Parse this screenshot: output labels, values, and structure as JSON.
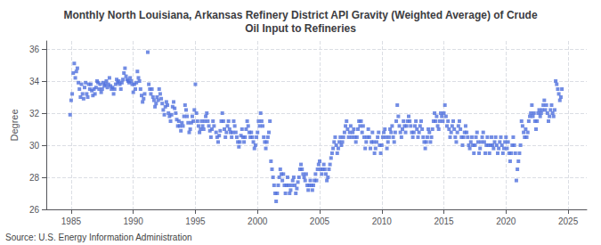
{
  "chart_data": {
    "type": "scatter",
    "title": "Monthly North Louisiana, Arkansas Refinery District API Gravity (Weighted Average) of Crude\nOil Input to Refineries",
    "ylabel": "Degree",
    "source": "Source: U.S. Energy Information Administration",
    "marker": "square",
    "grid": true,
    "xlim": [
      1983.0,
      2026.5
    ],
    "ylim": [
      26,
      36.5
    ],
    "xticks": [
      1985,
      1990,
      1995,
      2000,
      2005,
      2010,
      2015,
      2020,
      2025
    ],
    "yticks": [
      26,
      28,
      30,
      32,
      34,
      36
    ],
    "x": [
      1984.917,
      1985.0,
      1985.083,
      1985.167,
      1985.25,
      1985.333,
      1985.417,
      1985.5,
      1985.583,
      1985.667,
      1985.75,
      1985.833,
      1985.917,
      1986.0,
      1986.083,
      1986.167,
      1986.25,
      1986.333,
      1986.417,
      1986.5,
      1986.583,
      1986.667,
      1986.75,
      1986.833,
      1986.917,
      1987.0,
      1987.083,
      1987.167,
      1987.25,
      1987.333,
      1987.417,
      1987.5,
      1987.583,
      1987.667,
      1987.75,
      1987.833,
      1987.917,
      1988.0,
      1988.083,
      1988.167,
      1988.25,
      1988.333,
      1988.417,
      1988.5,
      1988.583,
      1988.667,
      1988.75,
      1988.833,
      1988.917,
      1989.0,
      1989.083,
      1989.167,
      1989.25,
      1989.333,
      1989.417,
      1989.5,
      1989.583,
      1989.667,
      1989.75,
      1989.833,
      1989.917,
      1990.0,
      1990.083,
      1990.167,
      1990.25,
      1990.333,
      1990.417,
      1990.5,
      1990.583,
      1990.667,
      1990.75,
      1990.833,
      1990.917,
      1991.167,
      1991.25,
      1991.333,
      1991.417,
      1991.5,
      1991.583,
      1991.667,
      1991.75,
      1991.833,
      1991.917,
      1992.0,
      1992.083,
      1992.167,
      1992.25,
      1992.333,
      1992.417,
      1992.5,
      1992.583,
      1992.667,
      1992.75,
      1992.833,
      1992.917,
      1993.0,
      1993.083,
      1993.167,
      1993.25,
      1993.333,
      1993.417,
      1993.5,
      1993.583,
      1993.667,
      1993.75,
      1993.833,
      1993.917,
      1994.0,
      1994.083,
      1994.167,
      1994.25,
      1994.333,
      1994.417,
      1994.5,
      1994.583,
      1994.667,
      1994.75,
      1994.833,
      1994.917,
      1995.0,
      1995.083,
      1995.167,
      1995.25,
      1995.333,
      1995.417,
      1995.5,
      1995.583,
      1995.667,
      1995.75,
      1995.833,
      1995.917,
      1996.0,
      1996.083,
      1996.167,
      1996.25,
      1996.333,
      1996.417,
      1996.5,
      1996.667,
      1996.75,
      1996.833,
      1996.917,
      1997.0,
      1997.083,
      1997.167,
      1997.25,
      1997.333,
      1997.417,
      1997.5,
      1997.583,
      1997.667,
      1997.75,
      1997.833,
      1997.917,
      1998.0,
      1998.083,
      1998.167,
      1998.25,
      1998.333,
      1998.417,
      1998.5,
      1998.583,
      1998.667,
      1998.75,
      1998.833,
      1998.917,
      1999.0,
      1999.083,
      1999.167,
      1999.25,
      1999.333,
      1999.417,
      1999.5,
      1999.583,
      1999.667,
      1999.75,
      1999.833,
      1999.917,
      2000.0,
      2000.083,
      2000.167,
      2000.25,
      2000.333,
      2000.417,
      2000.5,
      2000.583,
      2000.667,
      2000.75,
      2000.833,
      2000.917,
      2001.0,
      2001.083,
      2001.167,
      2001.25,
      2001.333,
      2001.417,
      2001.5,
      2001.583,
      2001.667,
      2001.75,
      2001.833,
      2001.917,
      2002.0,
      2002.083,
      2002.167,
      2002.25,
      2002.333,
      2002.417,
      2002.5,
      2002.583,
      2002.667,
      2002.75,
      2002.833,
      2002.917,
      2003.0,
      2003.083,
      2003.167,
      2003.25,
      2003.333,
      2003.417,
      2003.5,
      2003.583,
      2003.667,
      2003.75,
      2003.833,
      2003.917,
      2004.0,
      2004.083,
      2004.167,
      2004.25,
      2004.333,
      2004.417,
      2004.5,
      2004.583,
      2004.667,
      2004.75,
      2004.833,
      2004.917,
      2005.0,
      2005.083,
      2005.167,
      2005.25,
      2005.333,
      2005.417,
      2005.5,
      2005.583,
      2005.667,
      2005.75,
      2005.833,
      2005.917,
      2006.0,
      2006.083,
      2006.167,
      2006.25,
      2006.333,
      2006.417,
      2006.5,
      2006.583,
      2006.667,
      2006.75,
      2006.833,
      2006.917,
      2007.0,
      2007.083,
      2007.167,
      2007.25,
      2007.333,
      2007.417,
      2007.5,
      2007.583,
      2007.667,
      2007.75,
      2007.833,
      2007.917,
      2008.0,
      2008.083,
      2008.167,
      2008.25,
      2008.333,
      2008.417,
      2008.5,
      2008.583,
      2008.667,
      2008.75,
      2008.833,
      2008.917,
      2009.0,
      2009.083,
      2009.167,
      2009.25,
      2009.333,
      2009.417,
      2009.5,
      2009.583,
      2009.667,
      2009.75,
      2009.833,
      2009.917,
      2010.0,
      2010.083,
      2010.167,
      2010.25,
      2010.333,
      2010.417,
      2010.5,
      2010.583,
      2010.667,
      2010.75,
      2010.833,
      2010.917,
      2011.0,
      2011.083,
      2011.167,
      2011.25,
      2011.333,
      2011.417,
      2011.5,
      2011.583,
      2011.667,
      2011.75,
      2011.833,
      2011.917,
      2012.0,
      2012.083,
      2012.167,
      2012.25,
      2012.333,
      2012.417,
      2012.5,
      2012.583,
      2012.667,
      2012.75,
      2012.833,
      2012.917,
      2013.0,
      2013.083,
      2013.167,
      2013.25,
      2013.333,
      2013.417,
      2013.5,
      2013.583,
      2013.667,
      2013.75,
      2013.833,
      2013.917,
      2014.0,
      2014.083,
      2014.167,
      2014.25,
      2014.333,
      2014.417,
      2014.5,
      2014.583,
      2014.667,
      2014.75,
      2014.833,
      2014.917,
      2015.0,
      2015.083,
      2015.167,
      2015.25,
      2015.333,
      2015.417,
      2015.5,
      2015.583,
      2015.667,
      2015.75,
      2015.833,
      2015.917,
      2016.0,
      2016.083,
      2016.167,
      2016.25,
      2016.333,
      2016.417,
      2016.5,
      2016.583,
      2016.667,
      2016.75,
      2016.833,
      2016.917,
      2017.0,
      2017.083,
      2017.167,
      2017.25,
      2017.333,
      2017.417,
      2017.5,
      2017.583,
      2017.667,
      2017.75,
      2017.833,
      2017.917,
      2018.0,
      2018.083,
      2018.167,
      2018.25,
      2018.333,
      2018.417,
      2018.5,
      2018.583,
      2018.667,
      2018.75,
      2018.833,
      2018.917,
      2019.0,
      2019.083,
      2019.167,
      2019.25,
      2019.333,
      2019.417,
      2019.5,
      2019.583,
      2019.667,
      2019.75,
      2019.833,
      2019.917,
      2020.0,
      2020.083,
      2020.167,
      2020.25,
      2020.333,
      2020.417,
      2020.5,
      2020.583,
      2020.667,
      2020.75,
      2020.833,
      2020.917,
      2021.0,
      2021.083,
      2021.167,
      2021.25,
      2021.333,
      2021.417,
      2021.5,
      2021.583,
      2021.667,
      2021.75,
      2021.833,
      2021.917,
      2022.0,
      2022.083,
      2022.167,
      2022.25,
      2022.333,
      2022.417,
      2022.5,
      2022.583,
      2022.667,
      2022.75,
      2022.833,
      2022.917,
      2023.0,
      2023.083,
      2023.167,
      2023.25,
      2023.333,
      2023.417,
      2023.5,
      2023.583,
      2023.667,
      2023.75,
      2023.833,
      2023.917,
      2024.0,
      2024.083,
      2024.167,
      2024.25,
      2024.333,
      2024.417,
      2024.5
    ],
    "values": [
      31.9,
      32.8,
      33.2,
      34.5,
      35.1,
      34.2,
      34.6,
      34.8,
      33.9,
      33.5,
      33.0,
      33.8,
      33.2,
      32.9,
      33.6,
      33.9,
      33.2,
      33.0,
      33.8,
      33.5,
      33.8,
      33.4,
      33.1,
      33.5,
      33.2,
      33.6,
      34.0,
      33.9,
      33.5,
      33.8,
      33.3,
      33.5,
      33.9,
      33.7,
      33.8,
      34.0,
      33.6,
      33.8,
      34.2,
      33.7,
      33.5,
      33.6,
      33.2,
      33.5,
      33.8,
      34.1,
      33.9,
      34.0,
      33.8,
      33.5,
      33.9,
      34.1,
      34.5,
      34.8,
      34.3,
      34.1,
      34.0,
      33.9,
      34.2,
      34.0,
      33.8,
      33.3,
      33.8,
      33.5,
      33.9,
      34.6,
      34.2,
      34.0,
      33.5,
      33.1,
      32.7,
      32.9,
      33.2,
      35.8,
      33.8,
      33.5,
      33.2,
      33.5,
      33.0,
      32.8,
      32.4,
      32.6,
      33.0,
      32.8,
      33.5,
      33.2,
      32.9,
      32.6,
      32.2,
      31.9,
      32.4,
      32.7,
      32.5,
      32.0,
      31.8,
      31.5,
      31.9,
      32.4,
      32.7,
      32.3,
      32.0,
      31.6,
      31.2,
      31.5,
      31.2,
      30.9,
      31.4,
      31.2,
      31.8,
      32.5,
      32.2,
      31.8,
      31.4,
      30.8,
      31.0,
      31.4,
      31.8,
      31.5,
      32.2,
      33.8,
      32.0,
      31.5,
      31.2,
      30.8,
      31.0,
      31.5,
      31.2,
      31.0,
      31.5,
      31.8,
      32.0,
      31.5,
      31.2,
      30.9,
      30.5,
      31.0,
      31.5,
      31.2,
      30.8,
      30.5,
      30.2,
      30.6,
      30.9,
      31.5,
      32.0,
      31.5,
      31.0,
      30.5,
      30.8,
      31.2,
      31.5,
      31.0,
      30.8,
      30.5,
      30.8,
      31.5,
      31.2,
      30.8,
      30.5,
      30.2,
      29.9,
      30.2,
      30.6,
      31.0,
      30.5,
      30.2,
      30.5,
      31.0,
      31.5,
      31.2,
      30.8,
      30.5,
      30.8,
      30.5,
      30.2,
      29.8,
      30.0,
      30.5,
      30.8,
      31.5,
      31.2,
      32.0,
      31.5,
      31.2,
      30.5,
      30.2,
      29.8,
      30.2,
      30.5,
      30.8,
      31.5,
      29.0,
      28.5,
      28.0,
      27.5,
      27.0,
      26.5,
      27.0,
      27.5,
      28.0,
      28.5,
      28.2,
      27.8,
      28.2,
      27.5,
      27.0,
      27.5,
      28.0,
      27.5,
      27.0,
      27.2,
      27.5,
      27.8,
      28.0,
      27.5,
      27.0,
      27.3,
      27.7,
      28.0,
      28.5,
      28.8,
      28.5,
      28.2,
      28.0,
      27.8,
      28.2,
      27.5,
      27.2,
      27.5,
      27.8,
      27.5,
      27.2,
      27.5,
      27.8,
      28.2,
      27.8,
      28.5,
      28.8,
      29.0,
      28.5,
      28.2,
      28.5,
      28.8,
      28.5,
      28.2,
      27.8,
      28.0,
      28.5,
      28.8,
      29.2,
      29.5,
      29.8,
      30.2,
      30.5,
      30.0,
      29.5,
      29.8,
      30.2,
      30.5,
      30.0,
      30.2,
      30.5,
      30.8,
      31.2,
      31.5,
      31.0,
      30.5,
      30.8,
      31.2,
      30.5,
      30.8,
      31.0,
      30.5,
      30.2,
      30.5,
      31.0,
      31.5,
      31.2,
      31.5,
      30.8,
      31.2,
      30.5,
      29.8,
      30.2,
      30.5,
      31.0,
      30.5,
      29.8,
      30.2,
      30.8,
      30.2,
      29.5,
      29.8,
      30.2,
      30.5,
      30.8,
      30.0,
      29.5,
      30.0,
      30.5,
      30.8,
      31.0,
      30.5,
      29.8,
      30.2,
      30.5,
      31.0,
      30.8,
      31.2,
      30.5,
      30.2,
      30.8,
      31.5,
      32.5,
      31.8,
      31.2,
      30.8,
      30.5,
      31.0,
      31.5,
      31.2,
      30.8,
      31.2,
      31.5,
      31.8,
      31.5,
      31.2,
      30.8,
      30.5,
      30.8,
      31.2,
      31.5,
      31.0,
      30.5,
      30.8,
      31.2,
      31.5,
      31.0,
      30.5,
      30.2,
      29.8,
      30.2,
      30.5,
      31.0,
      30.8,
      30.2,
      30.5,
      31.0,
      31.5,
      32.0,
      31.5,
      31.8,
      31.2,
      31.0,
      31.5,
      32.0,
      31.8,
      31.5,
      32.0,
      32.5,
      31.8,
      31.2,
      31.5,
      31.0,
      30.5,
      30.8,
      31.2,
      31.5,
      31.0,
      30.5,
      30.2,
      30.8,
      31.2,
      31.5,
      31.0,
      30.5,
      30.0,
      30.5,
      30.8,
      31.2,
      30.8,
      30.5,
      30.0,
      29.8,
      30.2,
      30.5,
      30.0,
      29.5,
      30.0,
      30.5,
      30.8,
      30.2,
      29.5,
      29.8,
      30.2,
      30.5,
      30.8,
      30.2,
      29.5,
      30.0,
      30.5,
      30.0,
      29.5,
      30.0,
      30.5,
      30.0,
      29.8,
      30.2,
      30.5,
      30.0,
      29.5,
      29.8,
      30.2,
      30.5,
      30.0,
      29.5,
      29.8,
      30.2,
      30.5,
      29.8,
      30.2,
      29.5,
      29.0,
      29.5,
      30.0,
      30.5,
      30.0,
      29.5,
      27.8,
      28.5,
      29.0,
      29.5,
      30.0,
      31.5,
      31.2,
      30.8,
      30.5,
      31.0,
      30.5,
      30.8,
      31.5,
      31.8,
      32.0,
      32.5,
      31.8,
      32.0,
      31.5,
      31.0,
      31.5,
      32.0,
      32.2,
      31.8,
      32.0,
      32.2,
      32.5,
      32.8,
      32.2,
      32.5,
      32.0,
      31.5,
      31.8,
      32.2,
      32.5,
      32.0,
      31.8,
      32.2,
      34.0,
      33.8,
      33.5,
      33.2,
      32.8,
      33.0,
      33.5
    ]
  }
}
